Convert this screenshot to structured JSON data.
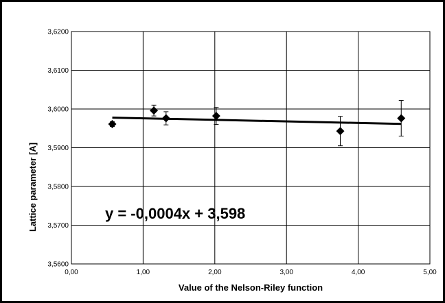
{
  "chart_data": {
    "type": "scatter",
    "xlabel": "Value of the Nelson-Riley function",
    "ylabel": "Lattice parameter [A]",
    "xlim": [
      0,
      5
    ],
    "ylim": [
      3.56,
      3.62
    ],
    "x_ticks": [
      0,
      1,
      2,
      3,
      4,
      5
    ],
    "y_ticks": [
      3.56,
      3.57,
      3.58,
      3.59,
      3.6,
      3.61,
      3.62
    ],
    "x_tick_labels": [
      "0,00",
      "1,00",
      "2,00",
      "3,00",
      "4,00",
      "5,00"
    ],
    "y_tick_labels": [
      "3,5600",
      "3,5700",
      "3,5800",
      "3,5900",
      "3,6000",
      "3,6100",
      "3,6200"
    ],
    "grid": true,
    "legend": "none",
    "series": [
      {
        "marker": "diamond",
        "x": [
          0.57,
          1.15,
          1.32,
          2.02,
          3.75,
          4.6
        ],
        "y": [
          3.5961,
          3.5996,
          3.5976,
          3.5982,
          3.5943,
          3.5976
        ],
        "y_err": [
          0.0006,
          0.0014,
          0.0017,
          0.0022,
          0.0038,
          0.0046
        ]
      }
    ],
    "trendline": {
      "slope": -0.0004,
      "intercept": 3.598,
      "x_range": [
        0.57,
        4.6
      ],
      "label": "y = -0,0004x + 3,598"
    },
    "colors": {
      "data": "#000000",
      "grid": "#000000",
      "background": "#ffffff"
    }
  }
}
